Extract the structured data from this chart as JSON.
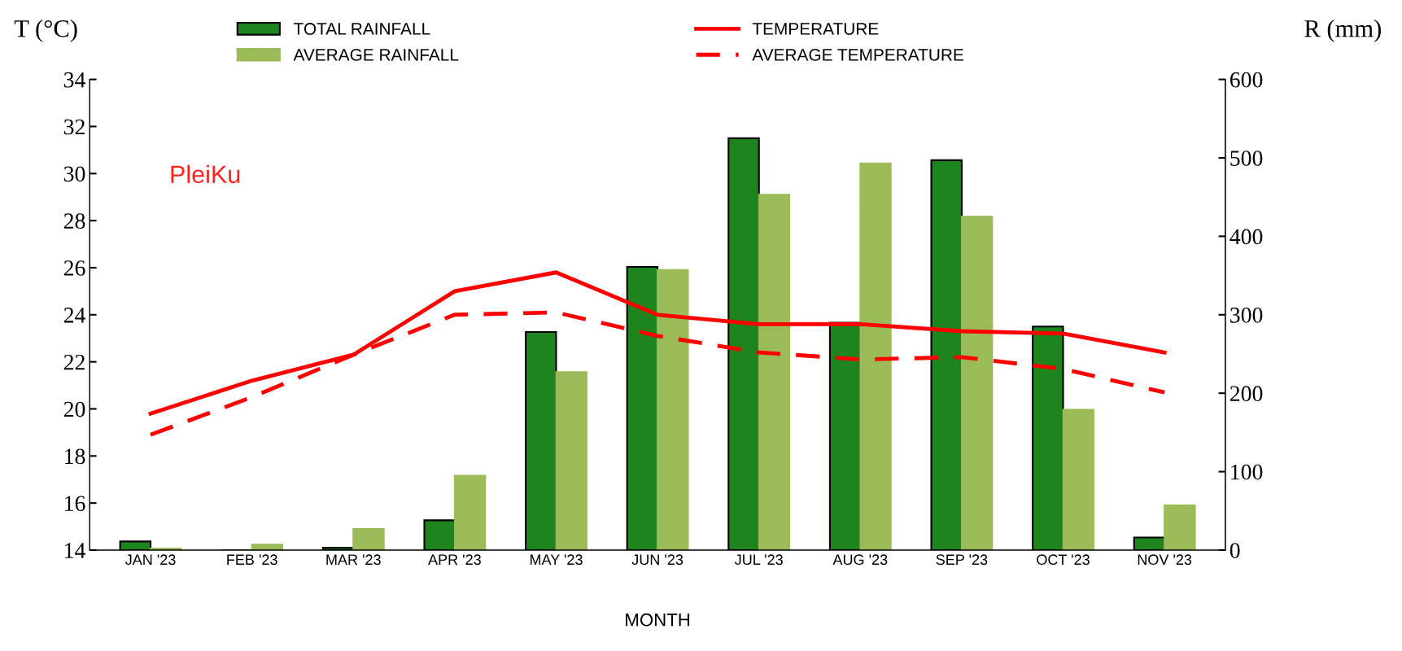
{
  "chart_data": {
    "type": "bar",
    "xlabel": "MONTH",
    "ylabel": "T (°C)",
    "y2label": "R (mm)",
    "categories": [
      "JAN '23",
      "FEB '23",
      "MAR '23",
      "APR '23",
      "MAY '23",
      "JUN '23",
      "JUL '23",
      "AUG '23",
      "SEP '23",
      "OCT '23",
      "NOV '23"
    ],
    "series": [
      {
        "name": "TOTAL RAINFALL",
        "axis": "y2",
        "color": "#1e841e",
        "values": [
          11,
          0,
          3,
          38,
          278,
          361,
          525,
          290,
          497,
          285,
          16
        ]
      },
      {
        "name": "AVERAGE RAINFALL",
        "axis": "y2",
        "color": "#9bbb59",
        "values": [
          2,
          7,
          27,
          95,
          227,
          357,
          453,
          493,
          425,
          179,
          57
        ]
      },
      {
        "name": "TEMPERATURE",
        "type": "line",
        "axis": "y",
        "color": "#ff0000",
        "line_style": "solid",
        "values": [
          19.8,
          21.2,
          22.3,
          25.0,
          25.8,
          24.0,
          23.6,
          23.6,
          23.3,
          23.2,
          22.4
        ]
      },
      {
        "name": "AVERAGE TEMPERATURE",
        "type": "line",
        "axis": "y",
        "color": "#ff0000",
        "line_style": "dashed",
        "values": [
          18.9,
          20.5,
          22.3,
          24.0,
          24.1,
          23.1,
          22.4,
          22.1,
          22.2,
          21.7,
          20.7
        ]
      }
    ],
    "ylim": [
      14,
      34
    ],
    "yticks": [
      14,
      16,
      18,
      20,
      22,
      24,
      26,
      28,
      30,
      32,
      34
    ],
    "y2lim": [
      0,
      600
    ],
    "y2ticks": [
      0,
      100,
      200,
      300,
      400,
      500,
      600
    ],
    "annotations": [
      "PleiKu"
    ],
    "grid": false,
    "legend": "top",
    "marker": "none"
  }
}
